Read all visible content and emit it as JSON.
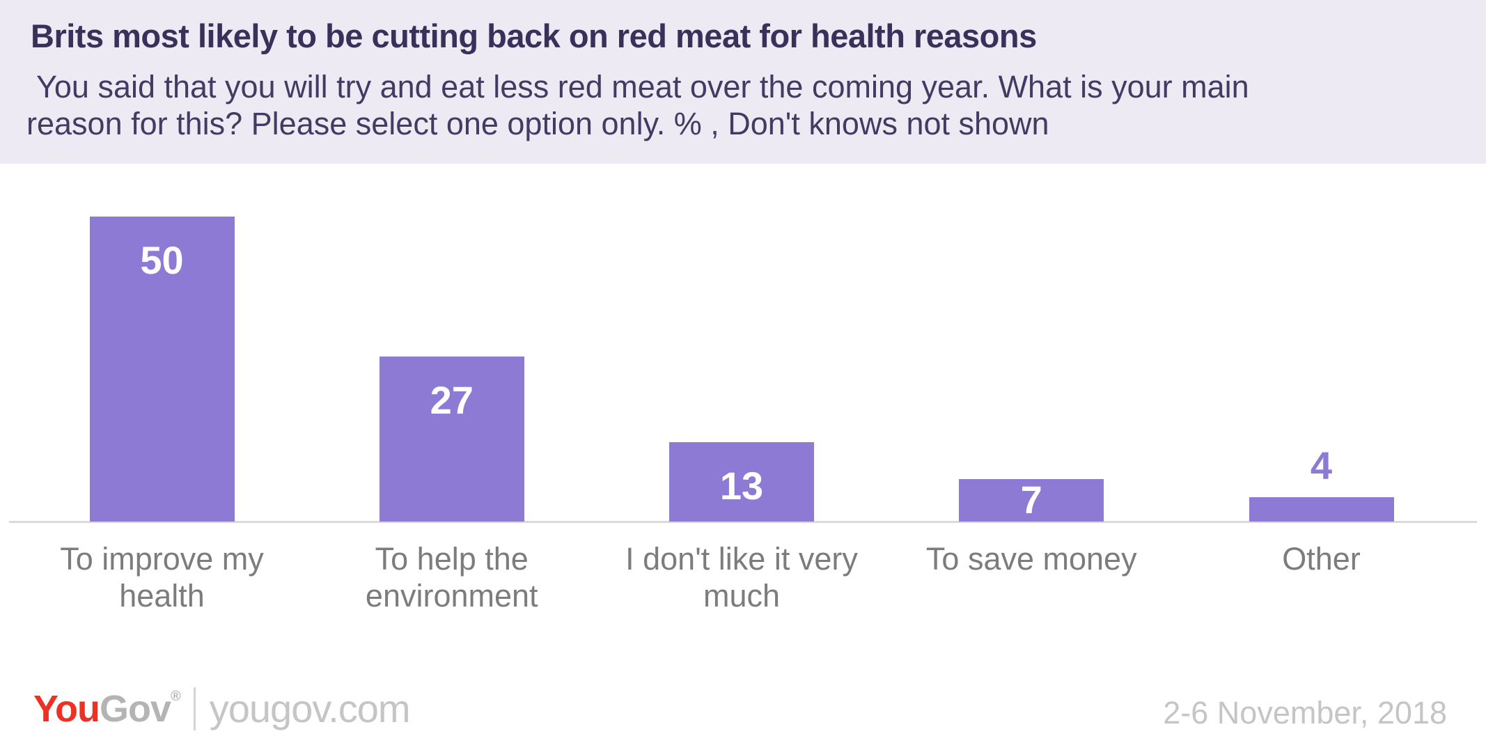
{
  "header": {
    "title": "Brits most likely to be cutting back on red meat for health reasons",
    "subtitle_line1": "You said that you will try and eat less red meat over the coming year. What is your main",
    "subtitle_line2": "reason for this? Please select one option only. % , Don't knows not shown"
  },
  "chart_data": {
    "type": "bar",
    "title": "Brits most likely to be cutting back on red meat for health reasons",
    "subtitle": "You said that you will try and eat less red meat over the coming year. What is your main reason for this? Please select one option only. % , Don't knows not shown",
    "categories": [
      "To improve my health",
      "To help the environment",
      "I don't like it very much",
      "To save money",
      "Other"
    ],
    "values": [
      50,
      27,
      13,
      7,
      4
    ],
    "unit": "%",
    "xlabel": "",
    "ylabel": "",
    "ylim": [
      0,
      50
    ],
    "grid": false,
    "legend": false,
    "y_axis_shown": false,
    "bar_color": "#8c7ad5",
    "value_label_inside_color": "#ffffff",
    "value_label_outside_color": "#8c7ad5"
  },
  "footer": {
    "logo_you": "You",
    "logo_gov": "Gov",
    "logo_reg": "®",
    "site": "yougov.com",
    "date": "2-6 November, 2018"
  },
  "colors": {
    "accent": "#8c7ad5",
    "header-bg": "#edeaf4",
    "title-color": "#39315a",
    "subtitle-color": "#423b62",
    "cat-color": "#7c7c7c",
    "axis-color": "#dadada",
    "logo-red": "#ee3124",
    "logo-gray": "#b5b4b4",
    "footer-gray": "#c5c4c7"
  }
}
